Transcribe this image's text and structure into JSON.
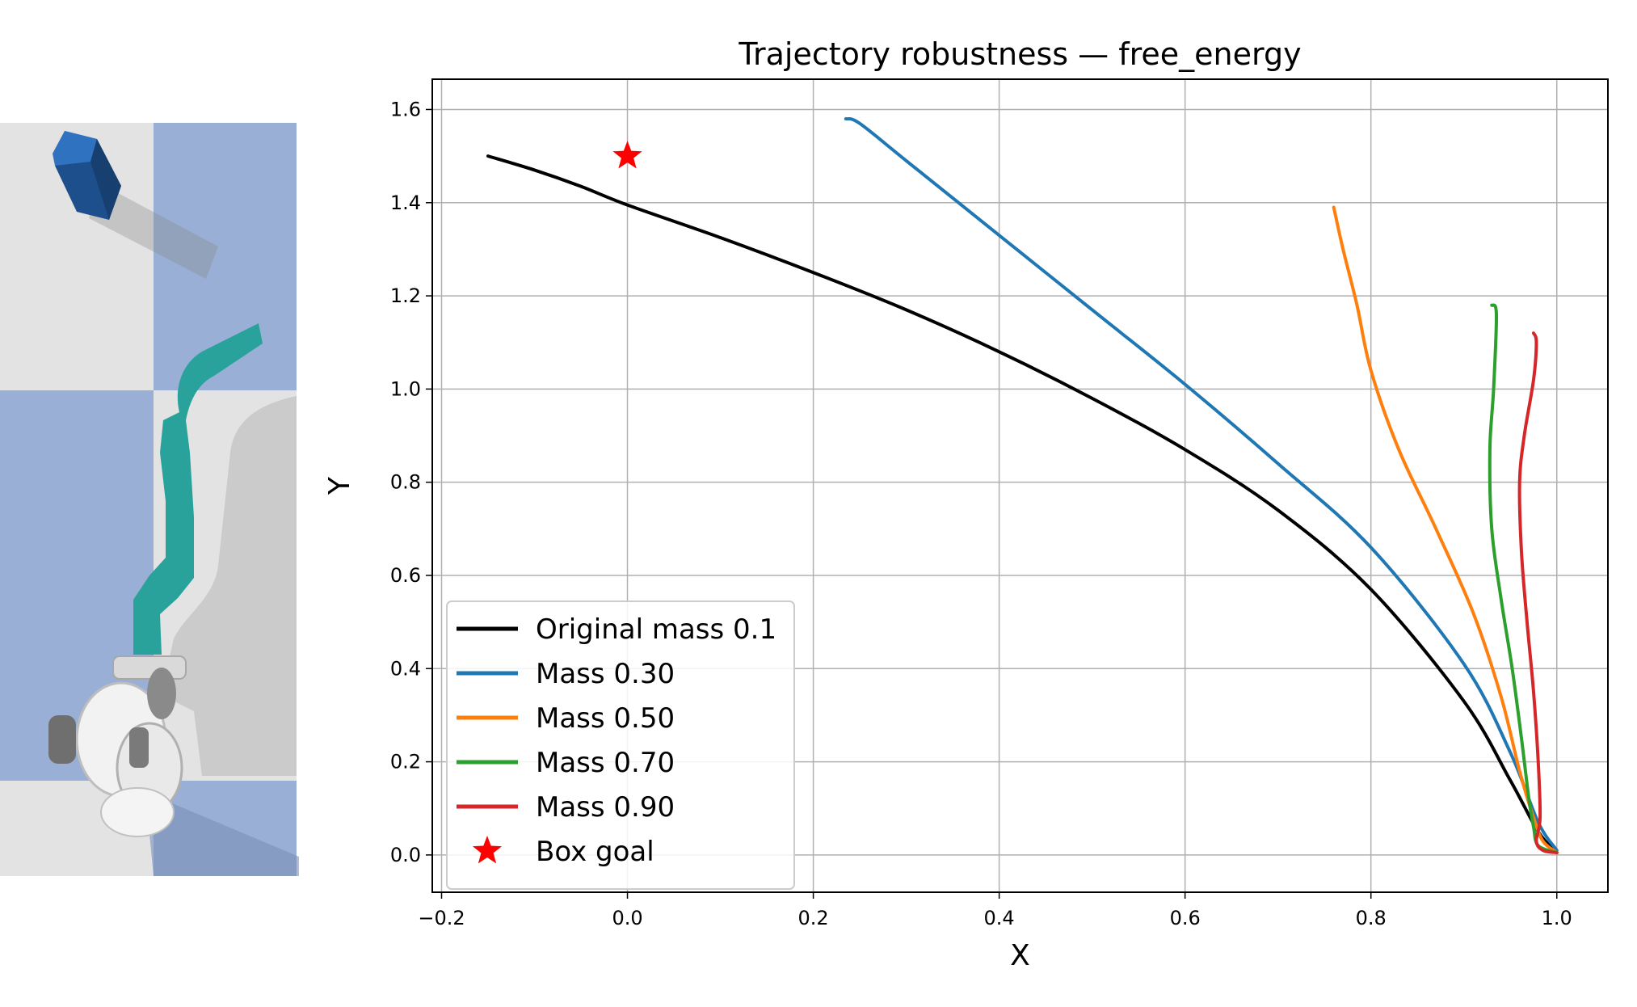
{
  "colors": {
    "original": "#000000",
    "mass_030": "#1f77b4",
    "mass_050": "#ff7f0e",
    "mass_070": "#2ca02c",
    "mass_090": "#d62728",
    "goal": "#ff0000",
    "floor_light": "#e3e3e3",
    "floor_blue": "#99afd6",
    "arm_teal": "#2aa29c",
    "box_blue": "#2b6cb3"
  },
  "chart_data": {
    "type": "line",
    "title": "Trajectory robustness — free_energy",
    "xlabel": "X",
    "ylabel": "Y",
    "xlim": [
      -0.21,
      1.055
    ],
    "ylim": [
      -0.08,
      1.665
    ],
    "xticks": [
      -0.2,
      0.0,
      0.2,
      0.4,
      0.6,
      0.8,
      1.0
    ],
    "xtick_labels": [
      "−0.2",
      "0.0",
      "0.2",
      "0.4",
      "0.6",
      "0.8",
      "1.0"
    ],
    "yticks": [
      0.0,
      0.2,
      0.4,
      0.6,
      0.8,
      1.0,
      1.2,
      1.4,
      1.6
    ],
    "ytick_labels": [
      "0.0",
      "0.2",
      "0.4",
      "0.6",
      "0.8",
      "1.0",
      "1.2",
      "1.4",
      "1.6"
    ],
    "grid": true,
    "legend_position": "lower-left",
    "series": [
      {
        "name": "Original mass 0.1",
        "color": "#000000",
        "x": [
          -0.15,
          -0.1,
          -0.05,
          0.0,
          0.1,
          0.2,
          0.3,
          0.4,
          0.5,
          0.6,
          0.7,
          0.8,
          0.9,
          0.95,
          0.98,
          1.0
        ],
        "y": [
          1.5,
          1.47,
          1.435,
          1.395,
          1.325,
          1.25,
          1.17,
          1.08,
          0.98,
          0.87,
          0.74,
          0.57,
          0.33,
          0.16,
          0.05,
          0.005
        ]
      },
      {
        "name": "Mass 0.30",
        "color": "#1f77b4",
        "x": [
          0.235,
          0.25,
          0.3,
          0.4,
          0.5,
          0.6,
          0.7,
          0.8,
          0.9,
          0.95,
          0.98,
          1.0
        ],
        "y": [
          1.58,
          1.57,
          1.49,
          1.33,
          1.17,
          1.01,
          0.84,
          0.66,
          0.41,
          0.22,
          0.07,
          0.01
        ]
      },
      {
        "name": "Mass 0.50",
        "color": "#ff7f0e",
        "x": [
          0.76,
          0.77,
          0.785,
          0.8,
          0.83,
          0.87,
          0.91,
          0.94,
          0.96,
          0.975,
          0.985,
          1.0
        ],
        "y": [
          1.39,
          1.3,
          1.18,
          1.04,
          0.87,
          0.7,
          0.52,
          0.34,
          0.18,
          0.08,
          0.03,
          0.005
        ]
      },
      {
        "name": "Mass 0.70",
        "color": "#2ca02c",
        "x": [
          0.93,
          0.935,
          0.932,
          0.928,
          0.93,
          0.94,
          0.952,
          0.962,
          0.97,
          0.975,
          0.98,
          1.0
        ],
        "y": [
          1.18,
          1.16,
          1.0,
          0.87,
          0.7,
          0.55,
          0.4,
          0.25,
          0.12,
          0.06,
          0.02,
          0.005
        ]
      },
      {
        "name": "Mass 0.90",
        "color": "#d62728",
        "x": [
          0.975,
          0.978,
          0.975,
          0.965,
          0.96,
          0.962,
          0.968,
          0.975,
          0.98,
          0.982,
          0.978,
          0.985,
          1.0
        ],
        "y": [
          1.12,
          1.1,
          1.02,
          0.9,
          0.8,
          0.65,
          0.5,
          0.35,
          0.2,
          0.08,
          0.03,
          0.01,
          0.005
        ]
      }
    ],
    "markers": [
      {
        "name": "Box goal",
        "x": 0.0,
        "y": 1.5,
        "color": "#ff0000",
        "shape": "star"
      }
    ]
  }
}
